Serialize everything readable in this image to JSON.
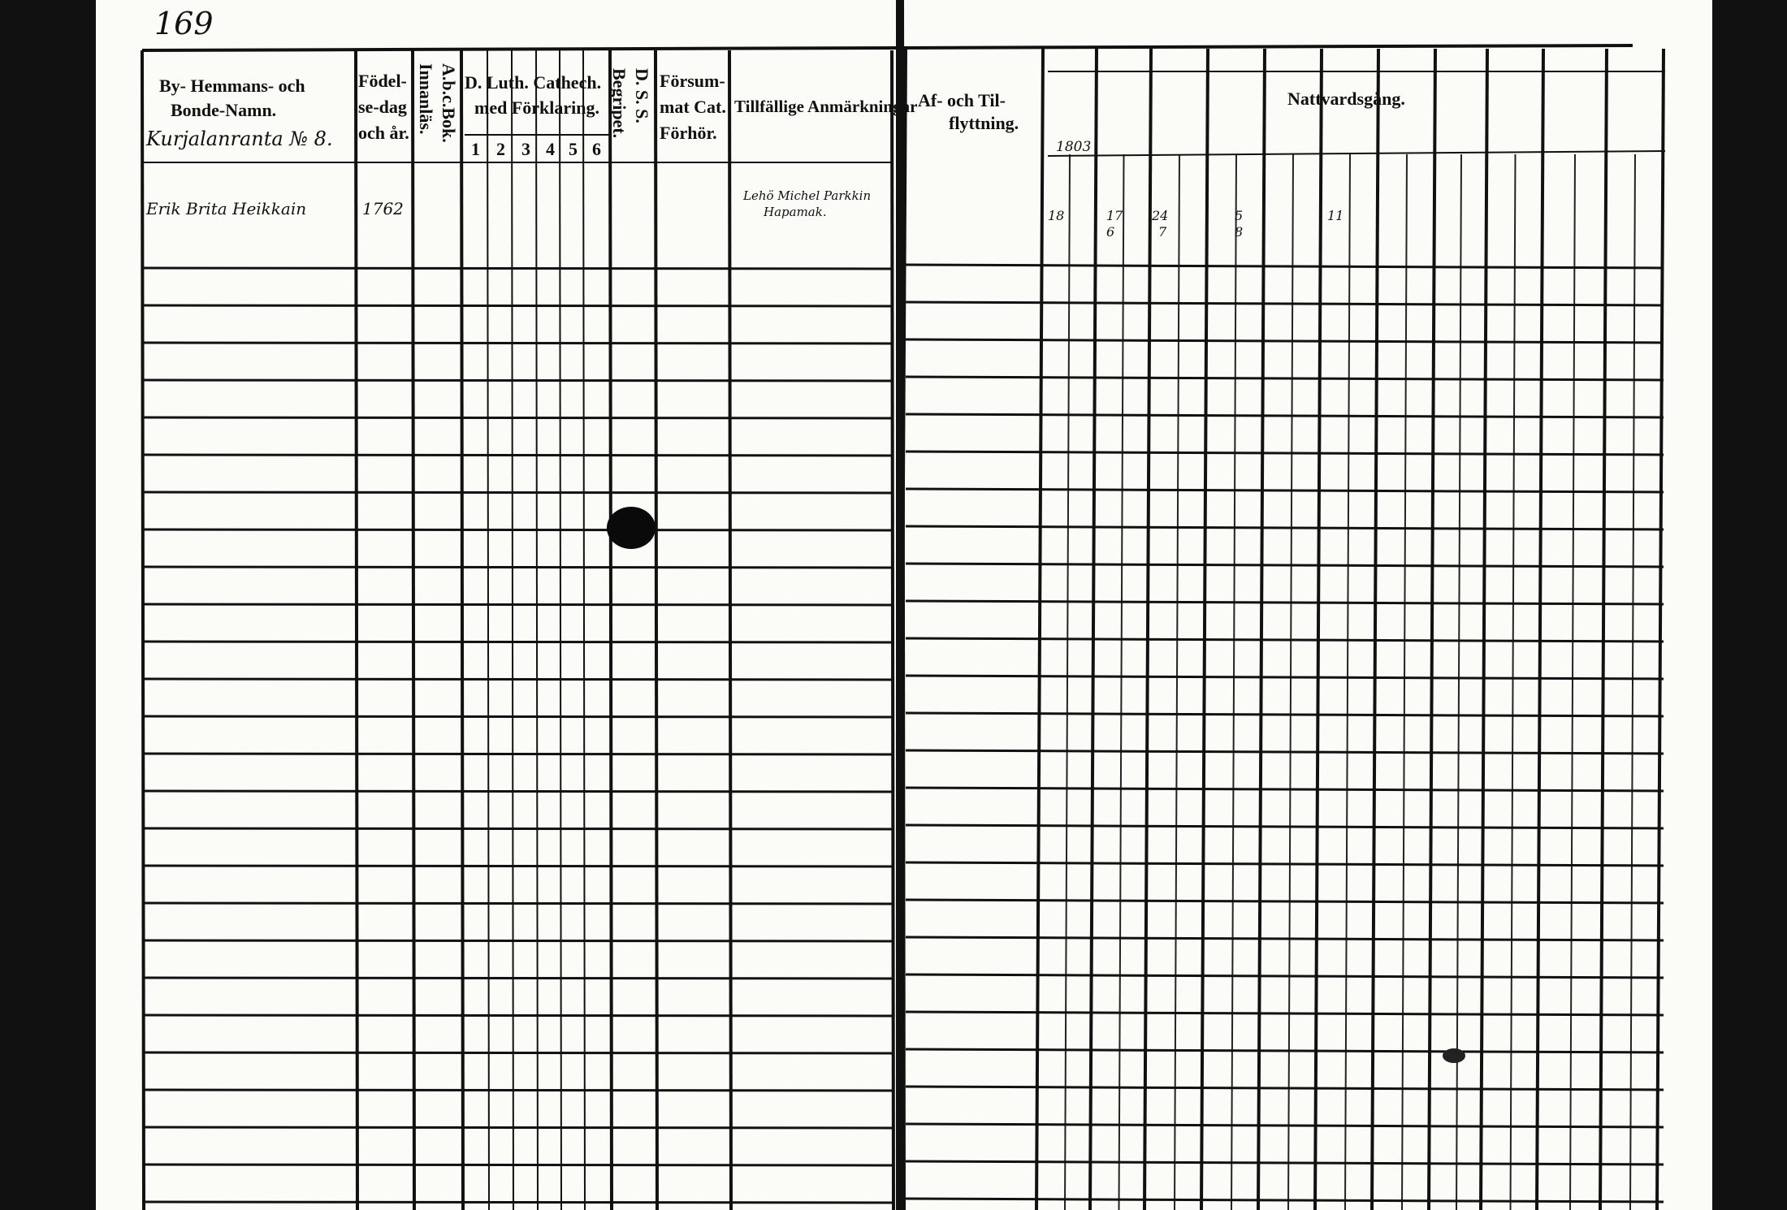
{
  "page_number": "169",
  "headers": {
    "name": [
      "By- Hemmans- och",
      "Bonde-Namn."
    ],
    "birth": [
      "Födel-",
      "se-dag",
      "och år."
    ],
    "abc": [
      "A.b.c.Bok.",
      "Innanläs."
    ],
    "catechism": [
      "D. Luth. Cathech.",
      "med Förklaring."
    ],
    "catechism_parts": [
      "1",
      "2",
      "3",
      "4",
      "5",
      "6"
    ],
    "dss": [
      "D. S. S.",
      "Begripet."
    ],
    "missed": [
      "Försum-",
      "mat Cat.",
      "Förhör."
    ],
    "remarks": "Tillfällige Anmärkningar",
    "moving": [
      "Af- och Til-",
      "flyttning."
    ],
    "communion": "Nattvardsgång."
  },
  "entries": {
    "village": "Kurjalanranta № 8.",
    "person": "Erik Brita Heikkain",
    "birth_year": "1762",
    "remark": [
      "Lehö Michel Parkkin",
      "Hapamak."
    ],
    "communion_year": "1803",
    "communion_marks": [
      "18",
      "17",
      "24",
      "5",
      "11"
    ],
    "communion_marks_below": [
      "6",
      "7",
      "8"
    ]
  }
}
